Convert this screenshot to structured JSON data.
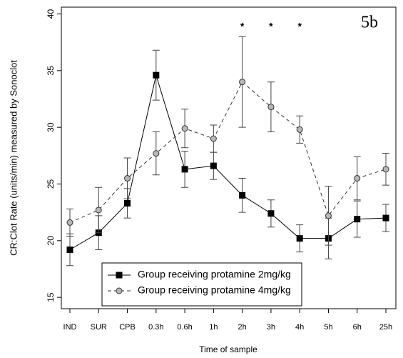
{
  "chart_data": {
    "type": "line",
    "panel_label": "5b",
    "x_label": "Time of sample",
    "y_label": "CR:Clot Rate (units/min) measured by Sonoclot",
    "categories": [
      "IND",
      "SUR",
      "CPB",
      "0.3h",
      "0.6h",
      "1h",
      "2h",
      "3h",
      "4h",
      "5h",
      "6h",
      "25h"
    ],
    "series": [
      {
        "name": "Group receiving protamine 2mg/kg",
        "color": "#000000",
        "marker": "square",
        "marker_fill": "#000000",
        "line_style": "solid",
        "values": [
          19.2,
          20.7,
          23.3,
          34.6,
          26.3,
          26.6,
          24.0,
          22.4,
          20.2,
          20.2,
          21.9,
          22.0
        ],
        "errors": [
          1.4,
          1.5,
          1.3,
          2.2,
          1.6,
          1.2,
          1.5,
          1.2,
          1.2,
          1.8,
          1.6,
          1.2
        ]
      },
      {
        "name": "Group receiving protamine 4mg/kg",
        "color": "#333333",
        "marker": "circle",
        "marker_fill": "#b8b8b8",
        "line_style": "dashed",
        "values": [
          21.6,
          22.7,
          25.5,
          27.7,
          29.9,
          29.0,
          34.0,
          31.8,
          29.8,
          22.2,
          25.5,
          26.3
        ],
        "errors": [
          1.2,
          2.0,
          1.8,
          1.9,
          1.7,
          1.2,
          4.0,
          2.2,
          1.2,
          2.6,
          1.9,
          1.4
        ]
      }
    ],
    "annotations": [
      {
        "text": "*",
        "category": "2h"
      },
      {
        "text": "*",
        "category": "3h"
      },
      {
        "text": "*",
        "category": "4h"
      }
    ],
    "ylim": [
      14,
      40.6
    ],
    "yticks": [
      15,
      20,
      25,
      30,
      35,
      40
    ],
    "legend": "bottom-left"
  }
}
